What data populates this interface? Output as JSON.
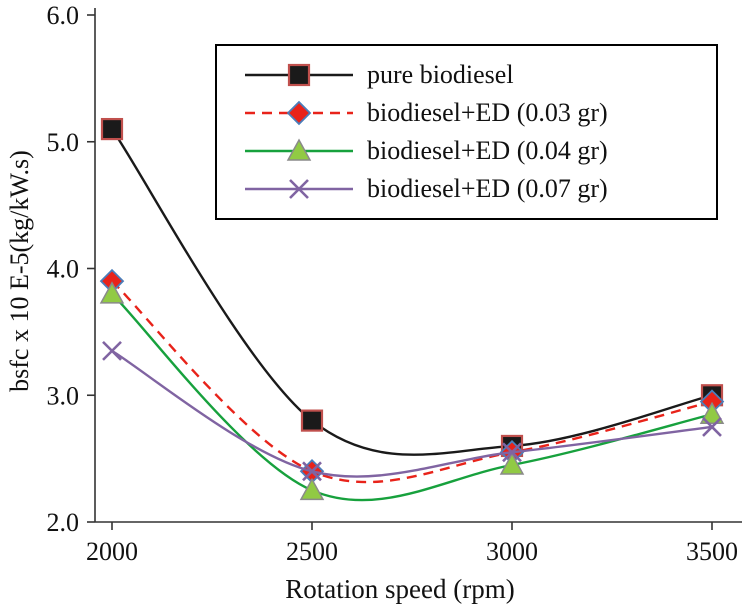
{
  "figure": {
    "background": "#ffffff"
  },
  "chart_data": {
    "type": "line",
    "title": "",
    "xlabel": "Rotation speed (rpm)",
    "ylabel": "bsfc x 10 E-5(kg/kW.s)",
    "x": [
      2000,
      2500,
      3000,
      3500
    ],
    "xtick_labels": [
      "2000",
      "2500",
      "3000",
      "3500"
    ],
    "ylim": [
      2.0,
      6.0
    ],
    "yticks": [
      2.0,
      3.0,
      4.0,
      5.0,
      6.0
    ],
    "ytick_labels": [
      "2.0",
      "3.0",
      "4.0",
      "5.0",
      "6.0"
    ],
    "grid": false,
    "smoothed": true,
    "legend": {
      "position": "top-center-inside",
      "border_color": "#000000"
    },
    "series": [
      {
        "name": "pure biodiesel",
        "values": [
          5.1,
          2.8,
          2.6,
          3.0
        ],
        "color": "#1a1a1a",
        "dash": "solid",
        "marker": "square",
        "marker_fill": "#1a1a1a",
        "marker_edge": "#c0504d"
      },
      {
        "name": "biodiesel+ED (0.03 gr)",
        "values": [
          3.9,
          2.4,
          2.55,
          2.95
        ],
        "color": "#e8231a",
        "dash": "dashed",
        "marker": "diamond",
        "marker_fill": "#e8231a",
        "marker_edge": "#4a7ebb"
      },
      {
        "name": "biodiesel+ED (0.04 gr)",
        "values": [
          3.8,
          2.25,
          2.45,
          2.85
        ],
        "color": "#17a13d",
        "dash": "solid",
        "marker": "triangle",
        "marker_fill": "#91ca44",
        "marker_edge": "#8a8a8a"
      },
      {
        "name": "biodiesel+ED (0.07 gr)",
        "values": [
          3.35,
          2.4,
          2.55,
          2.75
        ],
        "color": "#8064a2",
        "dash": "solid",
        "marker": "x",
        "marker_fill": "#8064a2",
        "marker_edge": "#8064a2"
      }
    ]
  }
}
